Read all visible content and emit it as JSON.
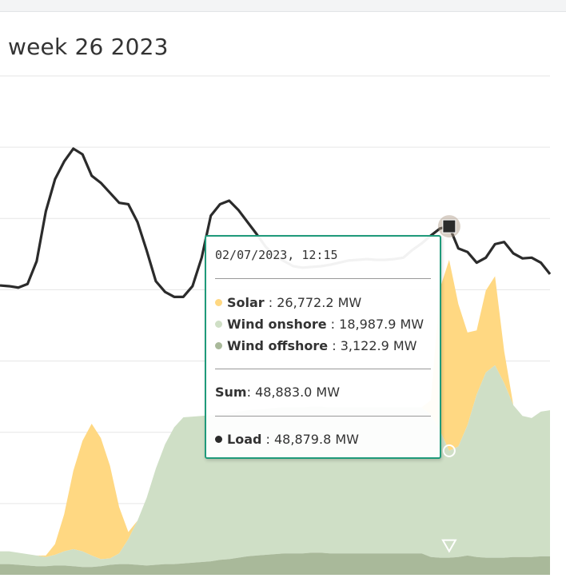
{
  "page": {
    "title": "week 26 2023"
  },
  "chart_data": {
    "type": "area",
    "title": "week 26 2023",
    "xlabel": "",
    "ylabel": "",
    "grid": true,
    "x_note": "half-hour sample index across the visible window",
    "series": [
      {
        "name": "Wind offshore",
        "color": "#a9b99a",
        "style": "stacked-area",
        "values": [
          1500,
          1500,
          1400,
          1300,
          1200,
          1200,
          1300,
          1300,
          1200,
          1100,
          1100,
          1200,
          1400,
          1500,
          1500,
          1400,
          1300,
          1400,
          1500,
          1500,
          1600,
          1700,
          1800,
          1900,
          2100,
          2200,
          2400,
          2600,
          2700,
          2800,
          2900,
          3000,
          3000,
          3000,
          3100,
          3100,
          3000,
          3000,
          3000,
          3000,
          3000,
          3000,
          3000,
          3000,
          3000,
          3000,
          3000,
          2500,
          2400,
          2400,
          2500,
          2700,
          2500,
          2400,
          2400,
          2400,
          2500,
          2500,
          2500,
          2600,
          2600
        ]
      },
      {
        "name": "Wind onshore",
        "color": "#cfdfc6",
        "style": "stacked-area",
        "values": [
          1800,
          1800,
          1700,
          1600,
          1500,
          1300,
          1500,
          2000,
          2400,
          2200,
          1600,
          1000,
          900,
          1500,
          3500,
          6200,
          9500,
          13500,
          16800,
          19200,
          20500,
          20500,
          20500,
          20500,
          20500,
          20500,
          20500,
          20500,
          20500,
          20500,
          20500,
          20500,
          20500,
          20500,
          20500,
          20500,
          20500,
          20500,
          20500,
          20500,
          20500,
          20500,
          20500,
          20500,
          20500,
          20500,
          20500,
          20000,
          17800,
          15000,
          15500,
          18300,
          22800,
          26000,
          27000,
          24500,
          21300,
          19800,
          19500,
          20300,
          20500
        ]
      },
      {
        "name": "Solar",
        "color": "#ffd882",
        "style": "stacked-area",
        "values": [
          0,
          0,
          0,
          0,
          0,
          200,
          1500,
          5200,
          11000,
          15500,
          18500,
          17000,
          13000,
          6500,
          1000,
          0,
          0,
          0,
          0,
          0,
          0,
          0,
          0,
          0,
          0,
          0,
          0,
          0,
          0,
          0,
          0,
          0,
          0,
          0,
          0,
          0,
          0,
          0,
          0,
          0,
          0,
          0,
          0,
          0,
          0,
          0,
          0,
          2000,
          20000,
          26800,
          20000,
          13000,
          9000,
          11500,
          12500,
          4500,
          0,
          0,
          0,
          0,
          0
        ]
      },
      {
        "name": "Load",
        "color": "#2b2b2b",
        "style": "line",
        "values": [
          40600,
          40500,
          40300,
          40800,
          44000,
          51000,
          55500,
          58000,
          59800,
          59000,
          56000,
          55000,
          53600,
          52200,
          52000,
          49500,
          45500,
          41200,
          39700,
          39000,
          39000,
          40500,
          44500,
          50400,
          52000,
          52500,
          51200,
          49500,
          47800,
          46000,
          44800,
          44000,
          43300,
          43100,
          43200,
          43300,
          43500,
          43800,
          44100,
          44200,
          44300,
          44200,
          44200,
          44300,
          44500,
          45600,
          46500,
          47600,
          48600,
          48900,
          45800,
          45300,
          43800,
          44500,
          46400,
          46700,
          45100,
          44400,
          44500,
          43800,
          42200
        ]
      }
    ],
    "ylim": [
      0,
      70000
    ]
  },
  "tooltip": {
    "date": "02/07/2023, 12:15",
    "items": [
      {
        "name": "Solar",
        "value": "26,772.2 MW",
        "color": "#ffd882"
      },
      {
        "name": "Wind onshore",
        "value": "18,987.9 MW",
        "color": "#cfdfc6"
      },
      {
        "name": "Wind offshore",
        "value": "3,122.9 MW",
        "color": "#a9b99a"
      }
    ],
    "sum_label": "Sum",
    "sum_value": "48,883.0 MW",
    "load": {
      "name": "Load",
      "value": "48,879.8 MW",
      "color": "#2b2b2b"
    }
  }
}
